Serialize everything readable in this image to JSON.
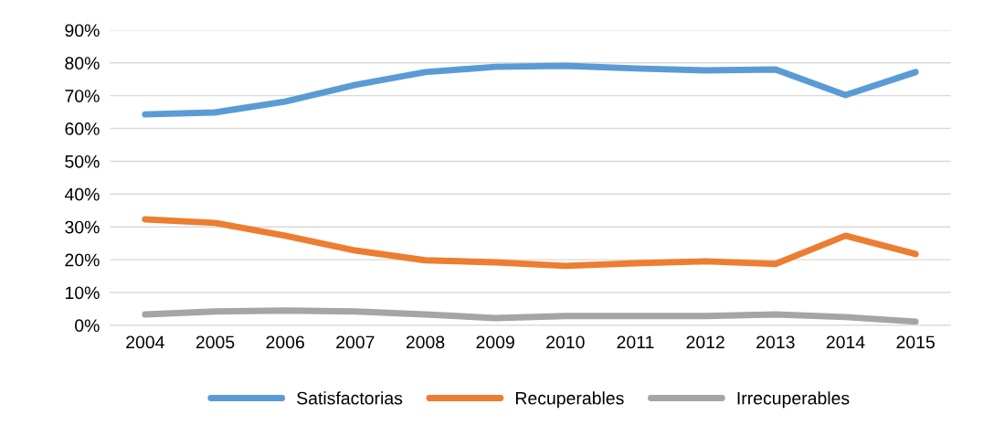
{
  "chart_data": {
    "type": "line",
    "categories": [
      "2004",
      "2005",
      "2006",
      "2007",
      "2008",
      "2009",
      "2010",
      "2011",
      "2012",
      "2013",
      "2014",
      "2015"
    ],
    "series": [
      {
        "name": "Satisfactorias",
        "color": "#5b9bd5",
        "values": [
          64.3,
          64.9,
          68.2,
          73.3,
          77.2,
          78.8,
          79.1,
          78.3,
          77.7,
          78.0,
          70.2,
          77.2
        ]
      },
      {
        "name": "Recuperables",
        "color": "#ed7d31",
        "values": [
          32.3,
          31.2,
          27.3,
          22.8,
          19.8,
          19.2,
          18.1,
          18.9,
          19.5,
          18.7,
          27.3,
          21.7
        ]
      },
      {
        "name": "Irrecuperables",
        "color": "#a5a5a5",
        "values": [
          3.3,
          4.2,
          4.5,
          4.2,
          3.3,
          2.2,
          2.8,
          2.8,
          2.8,
          3.3,
          2.5,
          1.1
        ]
      }
    ],
    "ylim": [
      0,
      90
    ],
    "yticks": [
      {
        "value": 0,
        "label": "0%"
      },
      {
        "value": 10,
        "label": "10%"
      },
      {
        "value": 20,
        "label": "20%"
      },
      {
        "value": 30,
        "label": "30%"
      },
      {
        "value": 40,
        "label": "40%"
      },
      {
        "value": 50,
        "label": "50%"
      },
      {
        "value": 60,
        "label": "60%"
      },
      {
        "value": 70,
        "label": "70%"
      },
      {
        "value": 80,
        "label": "80%"
      },
      {
        "value": 90,
        "label": "90%"
      }
    ],
    "grid": "y",
    "legend": "bottom",
    "marker": "none",
    "line_style": "solid"
  }
}
